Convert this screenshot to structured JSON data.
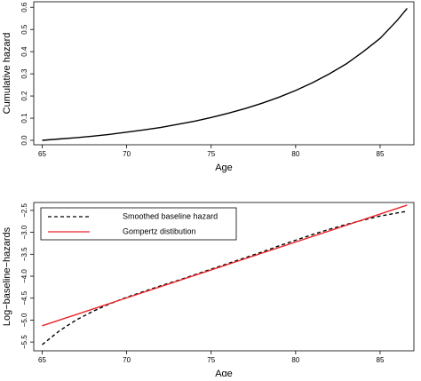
{
  "chart_data": [
    {
      "type": "line",
      "x_label": "Age",
      "y_label": "Cumulative hazard",
      "x": [
        65,
        66,
        67,
        68,
        69,
        70,
        71,
        72,
        73,
        74,
        75,
        76,
        77,
        78,
        79,
        80,
        81,
        82,
        83,
        84,
        85,
        86,
        86.6
      ],
      "values": [
        0,
        0.006,
        0.012,
        0.019,
        0.027,
        0.037,
        0.047,
        0.058,
        0.072,
        0.086,
        0.103,
        0.122,
        0.143,
        0.167,
        0.194,
        0.225,
        0.26,
        0.3,
        0.345,
        0.4,
        0.46,
        0.54,
        0.595
      ],
      "color": "#000000",
      "xlim": [
        64.5,
        87
      ],
      "ylim": [
        -0.02,
        0.625
      ],
      "xticks": [
        65,
        70,
        75,
        80,
        85
      ],
      "yticks": [
        {
          "value": 0,
          "label": "0.0"
        },
        0.1,
        0.2,
        0.3,
        0.4,
        0.5,
        0.6
      ]
    },
    {
      "type": "line",
      "x_label": "Age",
      "y_label": "Log−baseline−hazards",
      "legend": "top-left",
      "series": [
        {
          "name": "Smoothed baseline hazard",
          "color": "#000000",
          "line_style": "dashed",
          "x": [
            65,
            66,
            67,
            68,
            69,
            70,
            71,
            72,
            73,
            74,
            75,
            76,
            77,
            78,
            79,
            80,
            81,
            82,
            83,
            84,
            85,
            86,
            86.6
          ],
          "values": [
            -5.56,
            -5.25,
            -5.0,
            -4.8,
            -4.63,
            -4.48,
            -4.35,
            -4.22,
            -4.1,
            -3.97,
            -3.84,
            -3.71,
            -3.58,
            -3.45,
            -3.31,
            -3.18,
            -3.05,
            -2.93,
            -2.82,
            -2.72,
            -2.63,
            -2.56,
            -2.52
          ]
        },
        {
          "name": "Gompertz distibution",
          "color": "#e8242b",
          "line_style": "solid",
          "x": [
            65,
            86.6
          ],
          "values": [
            -5.13,
            -2.38
          ]
        }
      ],
      "xlim": [
        64.5,
        87
      ],
      "ylim": [
        -5.7,
        -2.32
      ],
      "xticks": [
        65,
        70,
        75,
        80,
        85
      ],
      "yticks": [
        {
          "value": -5.5,
          "label": "−5.5"
        },
        {
          "value": -5,
          "label": "−5.0"
        },
        {
          "value": -4.5,
          "label": "−4.5"
        },
        {
          "value": -4,
          "label": "−4.0"
        },
        {
          "value": -3.5,
          "label": "−3.5"
        },
        {
          "value": -3,
          "label": "−3.0"
        },
        {
          "value": -2.5,
          "label": "−2.5"
        }
      ]
    }
  ]
}
